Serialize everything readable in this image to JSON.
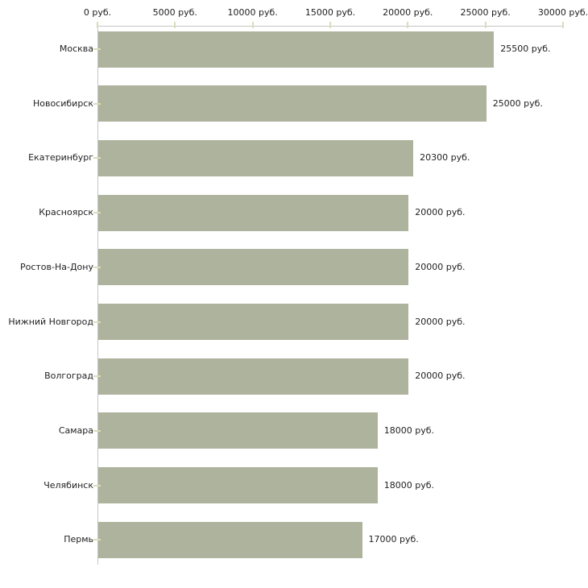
{
  "chart_data": {
    "type": "bar",
    "orientation": "horizontal",
    "title": "",
    "categories": [
      "Москва",
      "Новосибирск",
      "Екатеринбург",
      "Красноярск",
      "Ростов-На-Дону",
      "Нижний Новгород",
      "Волгоград",
      "Самара",
      "Челябинск",
      "Пермь"
    ],
    "values": [
      25500,
      25000,
      20300,
      20000,
      20000,
      20000,
      20000,
      18000,
      18000,
      17000
    ],
    "value_labels": [
      "25500 руб.",
      "25000 руб.",
      "20300 руб.",
      "20000 руб.",
      "20000 руб.",
      "20000 руб.",
      "20000 руб.",
      "18000 руб.",
      "18000 руб.",
      "17000 руб."
    ],
    "x_axis": {
      "min": 0,
      "max": 30000,
      "position": "top",
      "tick_values": [
        0,
        5000,
        10000,
        15000,
        20000,
        25000,
        30000
      ],
      "tick_labels": [
        "0 руб.",
        "5000 руб.",
        "10000 руб.",
        "15000 руб.",
        "20000 руб.",
        "25000 руб.",
        "30000 руб."
      ]
    },
    "grid": false,
    "legend": false,
    "colors": {
      "bar": "#aeb39d",
      "axis_line": "#c5c5c5",
      "tick_mark": "#dadcbb",
      "text": "#1f1f1f",
      "background": "#ffffff"
    }
  }
}
